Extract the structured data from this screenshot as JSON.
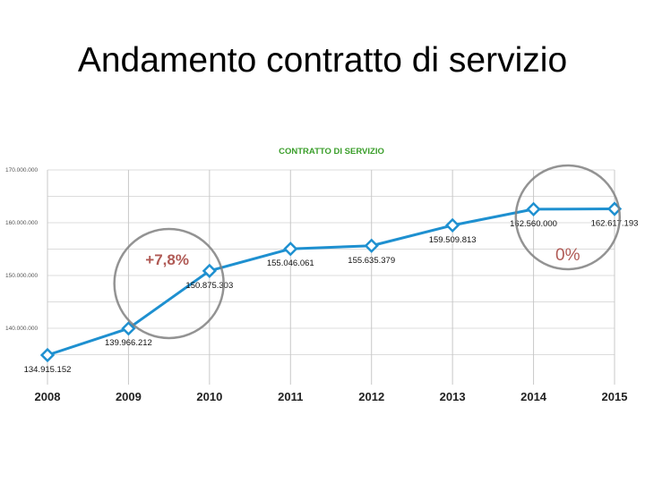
{
  "slide": {
    "title": "Andamento contratto di servizio"
  },
  "chart_data": {
    "type": "line",
    "title": "CONTRATTO DI SERVIZIO",
    "xlabel": "",
    "ylabel": "",
    "categories": [
      "2008",
      "2009",
      "2010",
      "2011",
      "2012",
      "2013",
      "2014",
      "2015"
    ],
    "series": [
      {
        "name": "Contratto di servizio",
        "values": [
          134915152,
          139966212,
          150875303,
          155046061,
          155635379,
          159509813,
          162560000,
          162617193
        ],
        "labels": [
          "134.915.152",
          "139.966.212",
          "150.875.303",
          "155.046.061",
          "155.635.379",
          "159.509.813",
          "162.560.000",
          "162.617.193"
        ]
      }
    ],
    "ylim": [
      130000000,
      170000000
    ],
    "yticks": [
      140000000,
      150000000,
      160000000,
      170000000
    ],
    "ytick_labels": [
      "140.000.000",
      "150.000.000",
      "160.000.000",
      "170.000.000"
    ],
    "minor_grid_step": 5000000,
    "grid": true,
    "legend": "none",
    "annotations": [
      {
        "text": "+7,8%",
        "between": [
          "2009",
          "2010"
        ]
      },
      {
        "text": "0%",
        "between": [
          "2014",
          "2015"
        ]
      }
    ],
    "colors": {
      "line": "#1e90d0",
      "title": "#3a9e2a",
      "annotation": "#b05a55",
      "circle": "#808080"
    }
  }
}
